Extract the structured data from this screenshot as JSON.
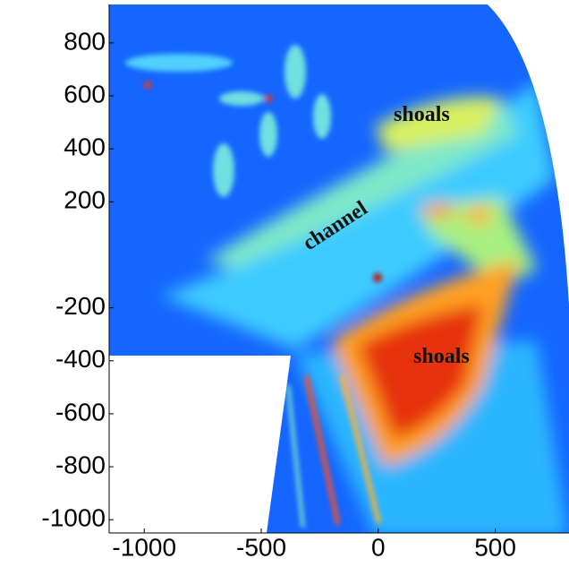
{
  "chart_data": {
    "type": "heatmap",
    "annotations": [
      "shoals",
      "channel",
      "shoals"
    ],
    "xlim": [
      -1150,
      815
    ],
    "xticks": [
      -1000,
      -500,
      0,
      500
    ],
    "ylim": [
      -1050,
      945
    ],
    "yticks": [
      800,
      600,
      400,
      200,
      -200,
      -400,
      -600,
      -800,
      -1000
    ]
  }
}
